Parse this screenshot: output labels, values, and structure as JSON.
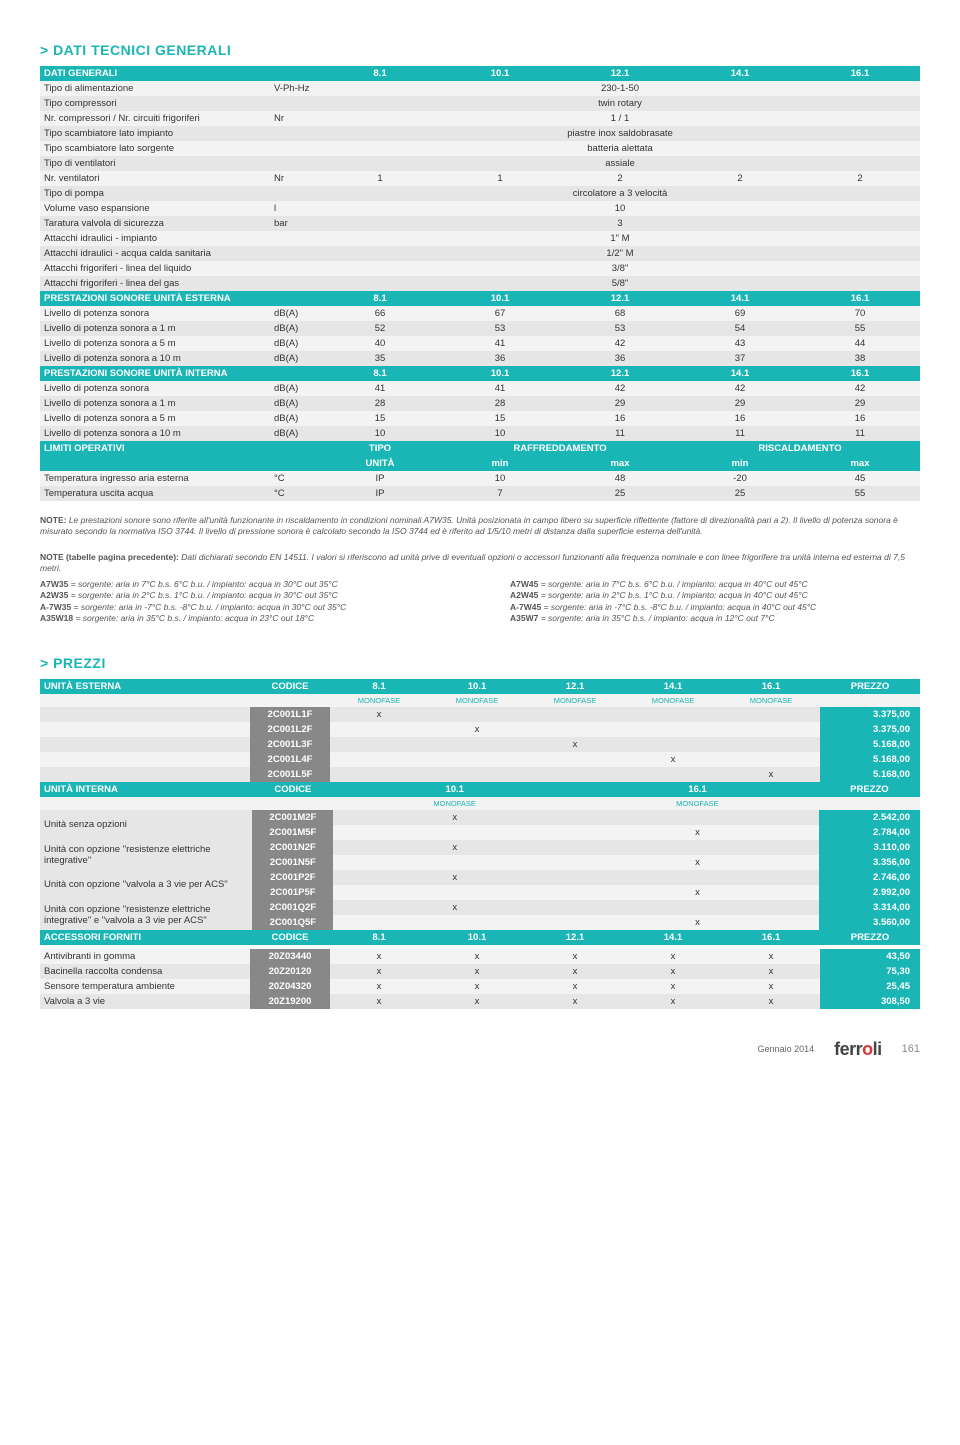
{
  "titles": {
    "dati": "> DATI TECNICI GENERALI",
    "prezzi": "> PREZZI"
  },
  "colors": {
    "teal": "#1ab5b5",
    "grey_band": "#888888",
    "row_odd": "#f3f3f3",
    "row_even": "#e6e6e6"
  },
  "dati": {
    "header": [
      "DATI GENERALI",
      "",
      "8.1",
      "10.1",
      "12.1",
      "14.1",
      "16.1"
    ],
    "rows": [
      {
        "label": "Tipo di alimentazione",
        "unit": "V-Ph-Hz",
        "span": "230-1-50"
      },
      {
        "label": "Tipo compressori",
        "unit": "",
        "span": "twin rotary"
      },
      {
        "label": "Nr. compressori / Nr. circuiti frigoriferi",
        "unit": "Nr",
        "span": "1 / 1"
      },
      {
        "label": "Tipo scambiatore lato impianto",
        "unit": "",
        "span": "piastre inox saldobrasate"
      },
      {
        "label": "Tipo scambiatore lato sorgente",
        "unit": "",
        "span": "batteria alettata"
      },
      {
        "label": "Tipo di ventilatori",
        "unit": "",
        "span": "assiale"
      },
      {
        "label": "Nr. ventilatori",
        "unit": "Nr",
        "vals": [
          "1",
          "1",
          "2",
          "2",
          "2"
        ]
      },
      {
        "label": "Tipo di pompa",
        "unit": "",
        "span": "circolatore a 3 velocità"
      },
      {
        "label": "Volume vaso espansione",
        "unit": "l",
        "span": "10"
      },
      {
        "label": "Taratura valvola di sicurezza",
        "unit": "bar",
        "span": "3"
      },
      {
        "label": "Attacchi idraulici - impianto",
        "unit": "",
        "span": "1\" M"
      },
      {
        "label": "Attacchi idraulici - acqua calda sanitaria",
        "unit": "",
        "span": "1/2\" M"
      },
      {
        "label": "Attacchi frigoriferi - linea del liquido",
        "unit": "",
        "span": "3/8\""
      },
      {
        "label": "Attacchi frigoriferi - linea del gas",
        "unit": "",
        "span": "5/8\""
      }
    ],
    "sonore_est": {
      "header": [
        "PRESTAZIONI SONORE UNITÀ ESTERNA",
        "",
        "8.1",
        "10.1",
        "12.1",
        "14.1",
        "16.1"
      ],
      "rows": [
        {
          "label": "Livello di potenza sonora",
          "unit": "dB(A)",
          "vals": [
            "66",
            "67",
            "68",
            "69",
            "70"
          ]
        },
        {
          "label": "Livello di potenza sonora a 1 m",
          "unit": "dB(A)",
          "vals": [
            "52",
            "53",
            "53",
            "54",
            "55"
          ]
        },
        {
          "label": "Livello di potenza sonora a 5 m",
          "unit": "dB(A)",
          "vals": [
            "40",
            "41",
            "42",
            "43",
            "44"
          ]
        },
        {
          "label": "Livello di potenza sonora a 10 m",
          "unit": "dB(A)",
          "vals": [
            "35",
            "36",
            "36",
            "37",
            "38"
          ]
        }
      ]
    },
    "sonore_int": {
      "header": [
        "PRESTAZIONI SONORE UNITÀ INTERNA",
        "",
        "8.1",
        "10.1",
        "12.1",
        "14.1",
        "16.1"
      ],
      "rows": [
        {
          "label": "Livello di potenza sonora",
          "unit": "dB(A)",
          "vals": [
            "41",
            "41",
            "42",
            "42",
            "42"
          ]
        },
        {
          "label": "Livello di potenza sonora a 1 m",
          "unit": "dB(A)",
          "vals": [
            "28",
            "28",
            "29",
            "29",
            "29"
          ]
        },
        {
          "label": "Livello di potenza sonora a 5 m",
          "unit": "dB(A)",
          "vals": [
            "15",
            "15",
            "16",
            "16",
            "16"
          ]
        },
        {
          "label": "Livello di potenza sonora a 10 m",
          "unit": "dB(A)",
          "vals": [
            "10",
            "10",
            "11",
            "11",
            "11"
          ]
        }
      ]
    },
    "limiti": {
      "header1": [
        "LIMITI OPERATIVI",
        "",
        "TIPO",
        "RAFFREDDAMENTO",
        "RISCALDAMENTO"
      ],
      "header2": [
        "",
        "",
        "UNITÀ",
        "min",
        "max",
        "min",
        "max"
      ],
      "rows": [
        {
          "label": "Temperatura ingresso aria esterna",
          "unit": "°C",
          "tipo": "IP",
          "vals": [
            "10",
            "48",
            "-20",
            "45"
          ]
        },
        {
          "label": "Temperatura uscita acqua",
          "unit": "°C",
          "tipo": "IP",
          "vals": [
            "7",
            "25",
            "25",
            "55"
          ]
        }
      ]
    }
  },
  "notes": {
    "p1_lead": "NOTE: ",
    "p1": "Le prestazioni sonore sono riferite all'unità funzionante in riscaldamento in condizioni nominali A7W35. Unità posizionata in campo libero su superficie riflettente (fattore di direzionalità pari a 2). Il livello di potenza sonora è misurato secondo la normativa ISO 3744. Il livello di pressione sonora è calcolato secondo la ISO 3744 ed è riferito ad 1/5/10 metri di distanza dalla superficie esterna dell'unità.",
    "p2_lead": "NOTE (tabelle pagina precedente): ",
    "p2": "Dati dichiarati secondo EN 14511. I valori si riferiscono ad unità prive di eventuali opzioni o accessori funzionanti alla frequenza nominale e con linee frigorifere tra unità interna ed esterna di 7,5 metri.",
    "cond_left": [
      [
        "A7W35",
        " = sorgente: aria in 7°C b.s. 6°C b.u. / impianto: acqua in 30°C out 35°C"
      ],
      [
        "A2W35",
        " = sorgente: aria in 2°C b.s. 1°C b.u. / impianto: acqua in 30°C out 35°C"
      ],
      [
        "A-7W35",
        " = sorgente: aria in -7°C b.s. -8°C b.u. / impianto: acqua in 30°C out 35°C"
      ],
      [
        "A35W18",
        " = sorgente: aria in 35°C b.s. / impianto: acqua in 23°C out 18°C"
      ]
    ],
    "cond_right": [
      [
        "A7W45",
        " = sorgente: aria in 7°C b.s. 6°C b.u. / impianto: acqua in 40°C out 45°C"
      ],
      [
        "A2W45",
        " = sorgente: aria in 2°C b.s. 1°C b.u. / impianto: acqua in 40°C out 45°C"
      ],
      [
        "A-7W45",
        " = sorgente: aria in -7°C b.s. -8°C b.u. / impianto: acqua in 40°C out 45°C"
      ],
      [
        "A35W7",
        " = sorgente: aria in 35°C b.s. / impianto: acqua in 12°C out 7°C"
      ]
    ]
  },
  "prezzi": {
    "est": {
      "header": [
        "UNITÀ ESTERNA",
        "CODICE",
        "8.1",
        "10.1",
        "12.1",
        "14.1",
        "16.1",
        "PREZZO"
      ],
      "sub": [
        "",
        "",
        "MONOFASE",
        "MONOFASE",
        "MONOFASE",
        "MONOFASE",
        "MONOFASE",
        ""
      ],
      "rows": [
        {
          "code": "2C001L1F",
          "marks": [
            "x",
            "",
            "",
            "",
            ""
          ],
          "price": "3.375,00"
        },
        {
          "code": "2C001L2F",
          "marks": [
            "",
            "x",
            "",
            "",
            ""
          ],
          "price": "3.375,00"
        },
        {
          "code": "2C001L3F",
          "marks": [
            "",
            "",
            "x",
            "",
            ""
          ],
          "price": "5.168,00"
        },
        {
          "code": "2C001L4F",
          "marks": [
            "",
            "",
            "",
            "x",
            ""
          ],
          "price": "5.168,00"
        },
        {
          "code": "2C001L5F",
          "marks": [
            "",
            "",
            "",
            "",
            "x"
          ],
          "price": "5.168,00"
        }
      ]
    },
    "int": {
      "header": [
        "UNITÀ INTERNA",
        "CODICE",
        "10.1",
        "16.1",
        "PREZZO"
      ],
      "sub": [
        "",
        "",
        "MONOFASE",
        "MONOFASE",
        ""
      ],
      "groups": [
        {
          "label": "Unità senza opzioni",
          "rows": [
            {
              "code": "2C001M2F",
              "marks": [
                "x",
                ""
              ],
              "price": "2.542,00"
            },
            {
              "code": "2C001M5F",
              "marks": [
                "",
                "x"
              ],
              "price": "2.784,00"
            }
          ]
        },
        {
          "label": "Unità con opzione \"resistenze elettriche integrative\"",
          "rows": [
            {
              "code": "2C001N2F",
              "marks": [
                "x",
                ""
              ],
              "price": "3.110,00"
            },
            {
              "code": "2C001N5F",
              "marks": [
                "",
                "x"
              ],
              "price": "3.356,00"
            }
          ]
        },
        {
          "label": "Unità con opzione \"valvola a 3 vie per ACS\"",
          "rows": [
            {
              "code": "2C001P2F",
              "marks": [
                "x",
                ""
              ],
              "price": "2.746,00"
            },
            {
              "code": "2C001P5F",
              "marks": [
                "",
                "x"
              ],
              "price": "2.992,00"
            }
          ]
        },
        {
          "label": "Unità con opzione \"resistenze elettriche integrative\" e \"valvola a 3 vie per ACS\"",
          "rows": [
            {
              "code": "2C001Q2F",
              "marks": [
                "x",
                ""
              ],
              "price": "3.314,00"
            },
            {
              "code": "2C001Q5F",
              "marks": [
                "",
                "x"
              ],
              "price": "3.560,00"
            }
          ]
        }
      ]
    },
    "acc": {
      "header": [
        "ACCESSORI FORNITI",
        "CODICE",
        "8.1",
        "10.1",
        "12.1",
        "14.1",
        "16.1",
        "PREZZO"
      ],
      "rows": [
        {
          "label": "Antivibranti in gomma",
          "code": "20Z03440",
          "marks": [
            "x",
            "x",
            "x",
            "x",
            "x"
          ],
          "price": "43,50"
        },
        {
          "label": "Bacinella raccolta condensa",
          "code": "20Z20120",
          "marks": [
            "x",
            "x",
            "x",
            "x",
            "x"
          ],
          "price": "75,30"
        },
        {
          "label": "Sensore temperatura ambiente",
          "code": "20Z04320",
          "marks": [
            "x",
            "x",
            "x",
            "x",
            "x"
          ],
          "price": "25,45"
        },
        {
          "label": "Valvola a 3 vie",
          "code": "20Z19200",
          "marks": [
            "x",
            "x",
            "x",
            "x",
            "x"
          ],
          "price": "308,50"
        }
      ]
    }
  },
  "footer": {
    "date": "Gennaio 2014",
    "brand": "ferroli",
    "page": "161"
  }
}
